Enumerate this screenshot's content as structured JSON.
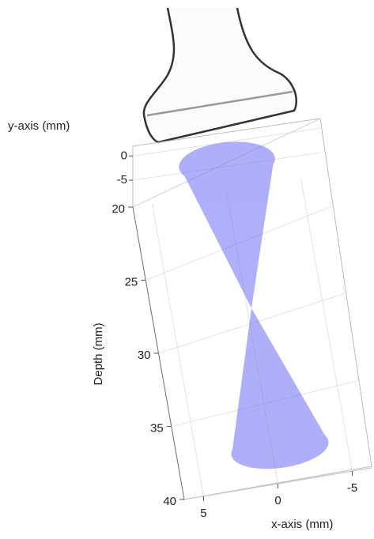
{
  "chart_data": {
    "type": "cone3d",
    "xlabel": "x-axis (mm)",
    "ylabel": "y-axis (mm)",
    "zlabel": "Depth (mm)",
    "xlim": [
      6.3,
      -6.3
    ],
    "xticks": [
      5,
      0,
      -5
    ],
    "ylim": [
      2,
      -10.5
    ],
    "yticks": [
      0,
      -5
    ],
    "zlim": [
      20,
      40
    ],
    "zticks": [
      20,
      25,
      30,
      35,
      40
    ],
    "color": "#6f6ff5",
    "grid": true
  }
}
